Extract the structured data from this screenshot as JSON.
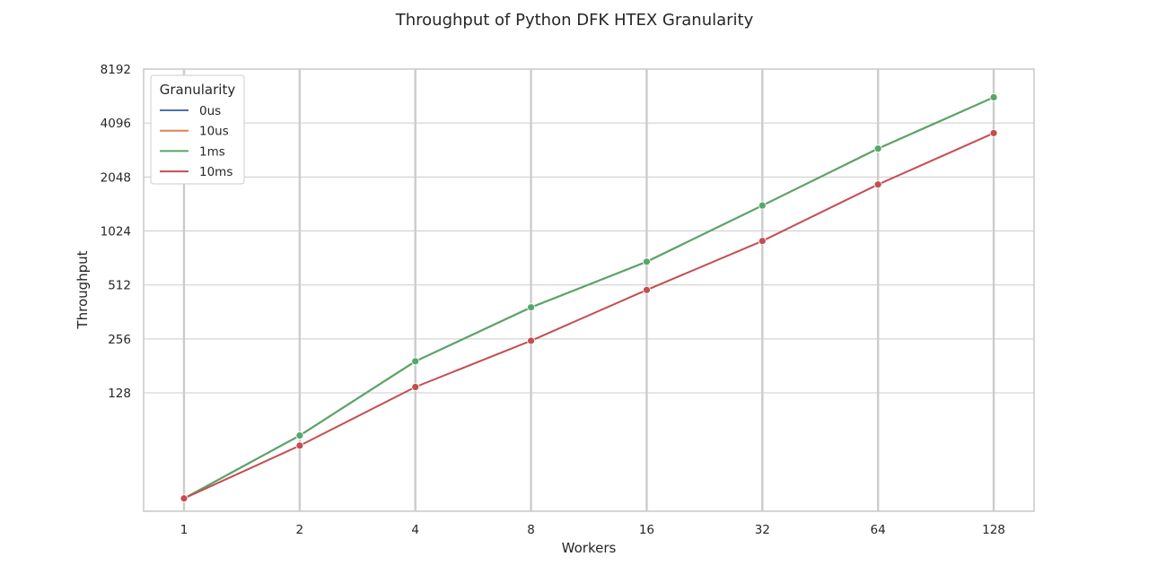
{
  "chart_data": {
    "type": "line",
    "title": "Throughput of Python DFK HTEX Granularity",
    "xlabel": "Workers",
    "ylabel": "Throughput",
    "x": [
      1,
      2,
      4,
      8,
      16,
      32,
      64,
      128
    ],
    "x_tick_labels": [
      "1",
      "2",
      "4",
      "8",
      "16",
      "32",
      "64",
      "128"
    ],
    "x_scale": "log2",
    "y_scale": "log2",
    "y_ticks": [
      128,
      256,
      512,
      1024,
      2048,
      4096,
      8192
    ],
    "y_tick_labels": [
      "128",
      "256",
      "512",
      "1024",
      "2048",
      "4096",
      "8192"
    ],
    "ylim": [
      28,
      8192
    ],
    "grid": true,
    "legend": {
      "title": "Granularity",
      "placement": "top-left"
    },
    "series": [
      {
        "name": "0us",
        "color": "#4c72b0",
        "values": [
          33,
          74,
          192,
          384,
          690,
          1420,
          2950,
          5700
        ]
      },
      {
        "name": "10us",
        "color": "#dd8452",
        "values": [
          33,
          74,
          192,
          384,
          690,
          1420,
          2950,
          5700
        ]
      },
      {
        "name": "1ms",
        "color": "#55a868",
        "values": [
          33,
          74,
          192,
          384,
          690,
          1420,
          2950,
          5700
        ]
      },
      {
        "name": "10ms",
        "color": "#c44e52",
        "values": [
          33,
          65,
          138,
          250,
          480,
          900,
          1860,
          3600
        ]
      }
    ]
  }
}
